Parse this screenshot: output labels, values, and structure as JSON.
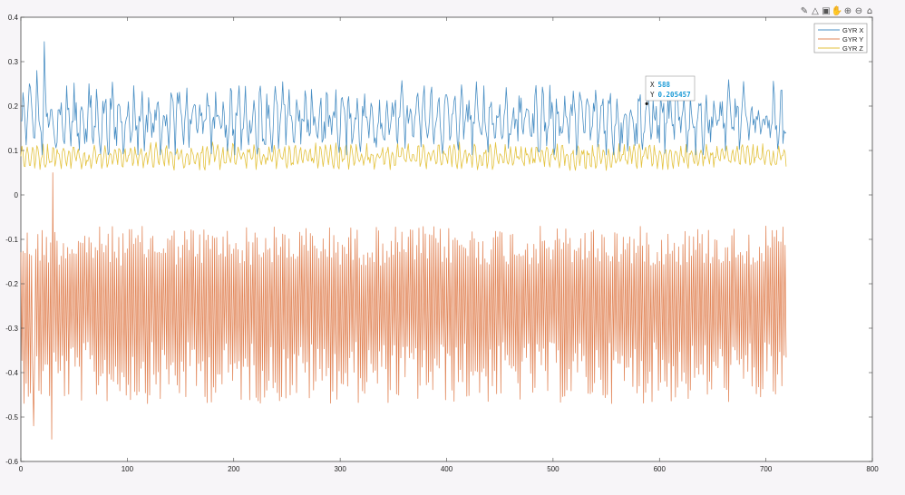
{
  "toolbar": {
    "icons": [
      "brush-icon",
      "datatip-icon",
      "save-icon",
      "pan-icon",
      "zoom-in-icon",
      "zoom-out-icon",
      "home-icon"
    ]
  },
  "chart_data": {
    "type": "line",
    "xlim": [
      0,
      800
    ],
    "ylim": [
      -0.6,
      0.4
    ],
    "x_ticks": [
      0,
      100,
      200,
      300,
      400,
      500,
      600,
      700,
      800
    ],
    "y_ticks": [
      0.4,
      0.3,
      0.2,
      0.1,
      0,
      -0.1,
      -0.2,
      -0.3,
      -0.4,
      -0.5,
      -0.6
    ],
    "grid": false,
    "legend_position": "top-right",
    "sample_count": 720,
    "series": [
      {
        "name": "GYR X",
        "color": "#4a8fc4",
        "mean": 0.17,
        "range": [
          0.09,
          0.35
        ]
      },
      {
        "name": "GYR Y",
        "color": "#e2875a",
        "mean": -0.21,
        "range": [
          -0.55,
          0.06
        ]
      },
      {
        "name": "GYR Z",
        "color": "#e3c23e",
        "mean": 0.087,
        "range": [
          0.05,
          0.13
        ]
      }
    ],
    "datatip": {
      "x_label": "X",
      "x_value": "588",
      "y_label": "Y",
      "y_value": "0.205457",
      "point": [
        588,
        0.205457
      ]
    }
  }
}
